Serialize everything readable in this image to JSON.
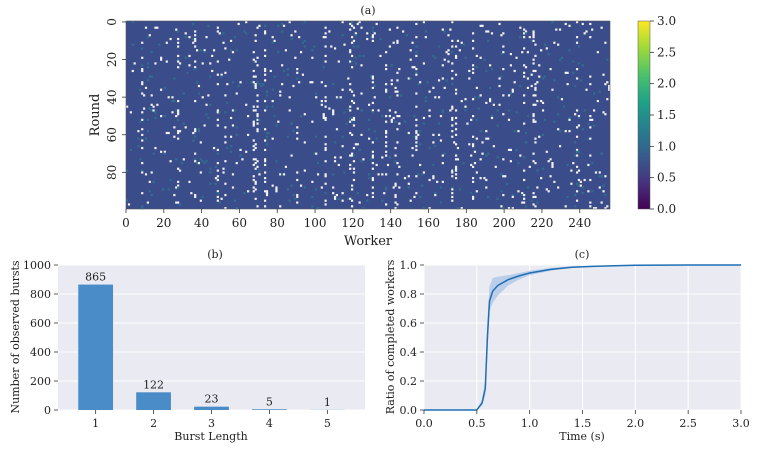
{
  "chart_data": [
    {
      "panel": "(a)",
      "type": "heatmap",
      "title": "(a)",
      "xlabel": "Worker",
      "ylabel": "Round",
      "xlim": [
        0,
        256
      ],
      "ylim": [
        0,
        100
      ],
      "xticks": [
        0,
        20,
        40,
        60,
        80,
        100,
        120,
        140,
        160,
        180,
        200,
        220,
        240
      ],
      "yticks": [
        0,
        20,
        40,
        60,
        80
      ],
      "colorbar": {
        "colormap": "viridis",
        "range": [
          0.0,
          3.0
        ],
        "ticks": [
          "0.0",
          "0.5",
          "1.0",
          "1.5",
          "2.0",
          "2.5",
          "3.0"
        ]
      },
      "cell_value_typical": 0.75,
      "background_color": "#3b4c8a",
      "outlier_color": "#f2f2f2",
      "outlier_columns": [
        8,
        27,
        36,
        48,
        52,
        67,
        68,
        69,
        73,
        90,
        105,
        118,
        119,
        120,
        130,
        137,
        142,
        143,
        153,
        172,
        174,
        183,
        199,
        210,
        215,
        216,
        238,
        245
      ]
    },
    {
      "panel": "(b)",
      "type": "bar",
      "title": "(b)",
      "xlabel": "Burst Length",
      "ylabel": "Number of observed bursts",
      "categories": [
        "1",
        "2",
        "3",
        "4",
        "5"
      ],
      "values": [
        865,
        122,
        23,
        5,
        1
      ],
      "data_labels": [
        "865",
        "122",
        "23",
        "5",
        "1"
      ],
      "ylim": [
        0,
        1000
      ],
      "yticks": [
        "0",
        "200",
        "400",
        "600",
        "800",
        "1000"
      ],
      "color": "#4a8cc7",
      "grid": true
    },
    {
      "panel": "(c)",
      "type": "line",
      "title": "(c)",
      "xlabel": "Time (s)",
      "ylabel": "Ratio of completed workers",
      "xlim": [
        0,
        3
      ],
      "ylim": [
        0,
        1
      ],
      "xticks": [
        "0.0",
        "0.5",
        "1.0",
        "1.5",
        "2.0",
        "2.5",
        "3.0"
      ],
      "yticks": [
        "0.0",
        "0.2",
        "0.4",
        "0.6",
        "0.8",
        "1.0"
      ],
      "line_color": "#1f6fb4",
      "band_color": "#a9c3e6",
      "grid": true,
      "x": [
        0.0,
        0.5,
        0.55,
        0.58,
        0.6,
        0.62,
        0.65,
        0.7,
        0.8,
        0.9,
        1.0,
        1.2,
        1.4,
        1.6,
        1.8,
        2.0,
        2.5,
        3.0
      ],
      "y": [
        0.0,
        0.0,
        0.05,
        0.15,
        0.5,
        0.75,
        0.82,
        0.86,
        0.9,
        0.925,
        0.945,
        0.97,
        0.985,
        0.99,
        0.995,
        0.998,
        1.0,
        1.0
      ],
      "lower": [
        0.0,
        0.0,
        0.03,
        0.1,
        0.38,
        0.68,
        0.74,
        0.79,
        0.86,
        0.9,
        0.93,
        0.96,
        0.98,
        0.988,
        0.994,
        0.997,
        1.0,
        1.0
      ],
      "upper": [
        0.0,
        0.0,
        0.07,
        0.22,
        0.62,
        0.85,
        0.91,
        0.92,
        0.93,
        0.945,
        0.96,
        0.98,
        0.99,
        0.995,
        0.998,
        1.0,
        1.0,
        1.0
      ]
    }
  ]
}
